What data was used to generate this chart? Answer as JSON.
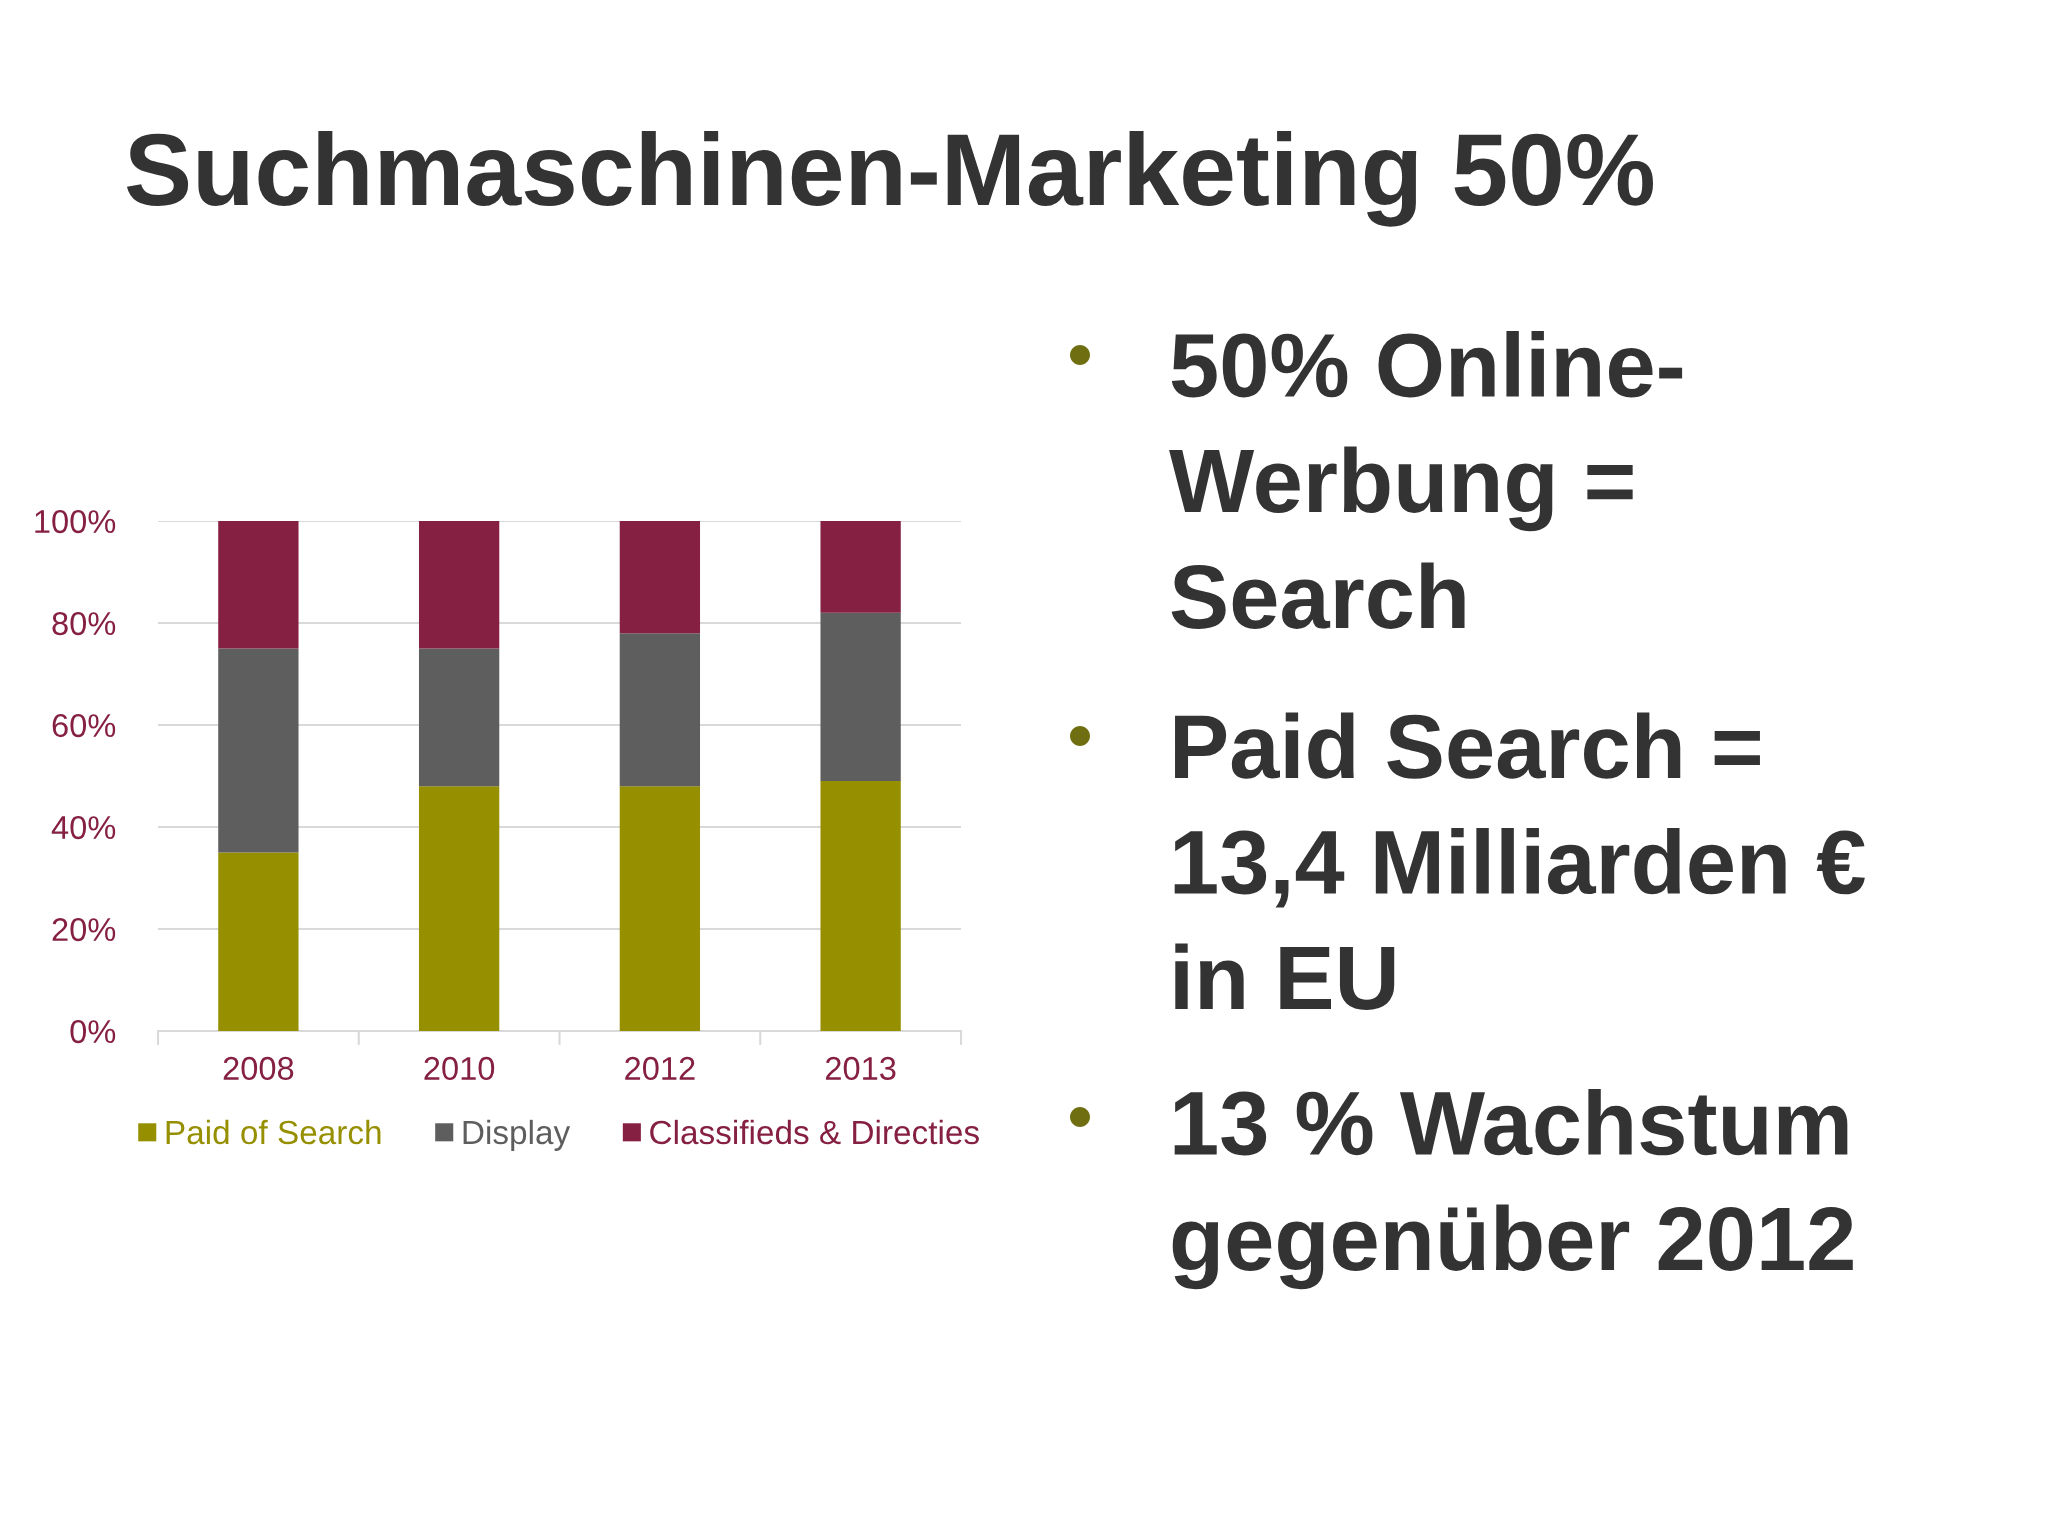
{
  "chart_data": {
    "type": "bar",
    "title": "Suchmaschinen-Marketing 50%",
    "categories": [
      "2008",
      "2010",
      "2012",
      "2013"
    ],
    "stacked": true,
    "series": [
      {
        "name": "Paid of Search",
        "color": "#968f00",
        "values": [
          35,
          48,
          48,
          49
        ]
      },
      {
        "name": "Display",
        "color": "#5f5e5f",
        "values": [
          40,
          27,
          30,
          33
        ]
      },
      {
        "name": "Classifieds & Directies",
        "color": "#862042",
        "values": [
          25,
          25,
          22,
          18
        ]
      }
    ],
    "ylim": [
      0,
      100
    ],
    "yticks": [
      {
        "value": 0,
        "label": "0%"
      },
      {
        "value": 20,
        "label": "20%"
      },
      {
        "value": 40,
        "label": "40%"
      },
      {
        "value": 60,
        "label": "60%"
      },
      {
        "value": 80,
        "label": "80%"
      },
      {
        "value": 100,
        "label": "100%"
      }
    ],
    "grid": "y",
    "legend": "bottom",
    "annotations": [
      "50% Online-\nWerbung =\nSearch",
      "Paid Search =\n13,4 Milliarden €\nin EU",
      "13 % Wachstum\ngegenüber 2012"
    ]
  }
}
